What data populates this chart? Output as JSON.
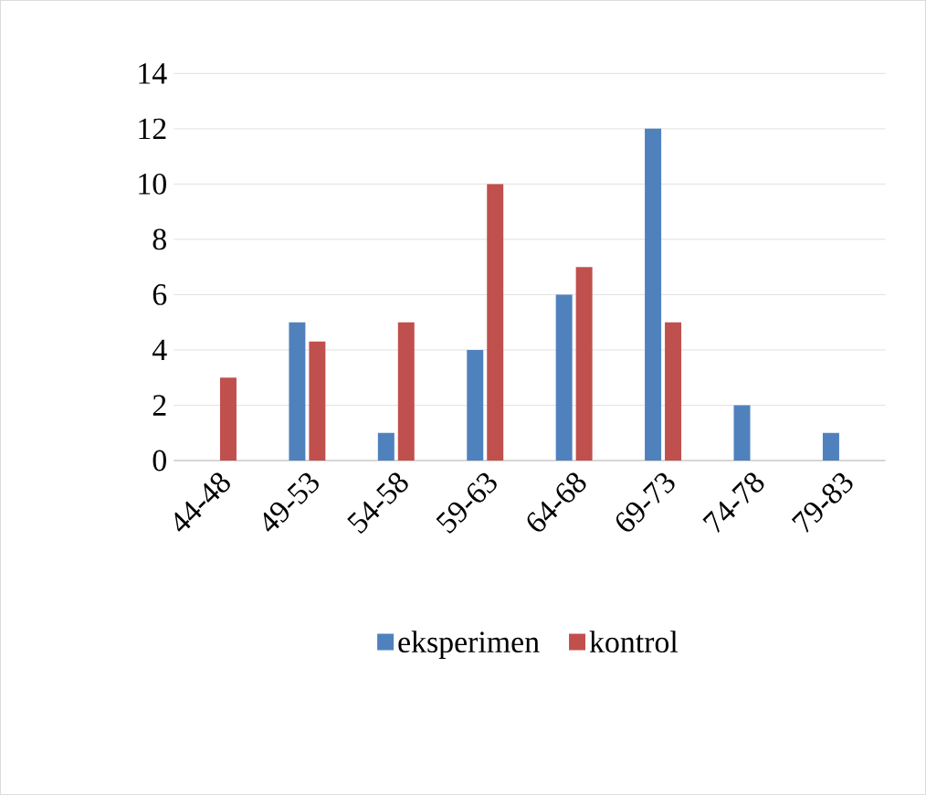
{
  "chart_data": {
    "type": "bar",
    "categories": [
      "44-48",
      "49-53",
      "54-58",
      "59-63",
      "64-68",
      "69-73",
      "74-78",
      "79-83"
    ],
    "series": [
      {
        "name": "eksperimen",
        "color": "#4f81bd",
        "values": [
          0,
          5,
          1,
          4,
          6,
          12,
          2,
          1
        ]
      },
      {
        "name": "kontrol",
        "color": "#c0504d",
        "values": [
          3,
          4.3,
          5,
          10,
          7,
          5,
          0,
          0
        ]
      }
    ],
    "ylim": [
      0,
      14
    ],
    "yticks": [
      0,
      2,
      4,
      6,
      8,
      10,
      12,
      14
    ],
    "grid": "y",
    "legend": "bottom"
  }
}
